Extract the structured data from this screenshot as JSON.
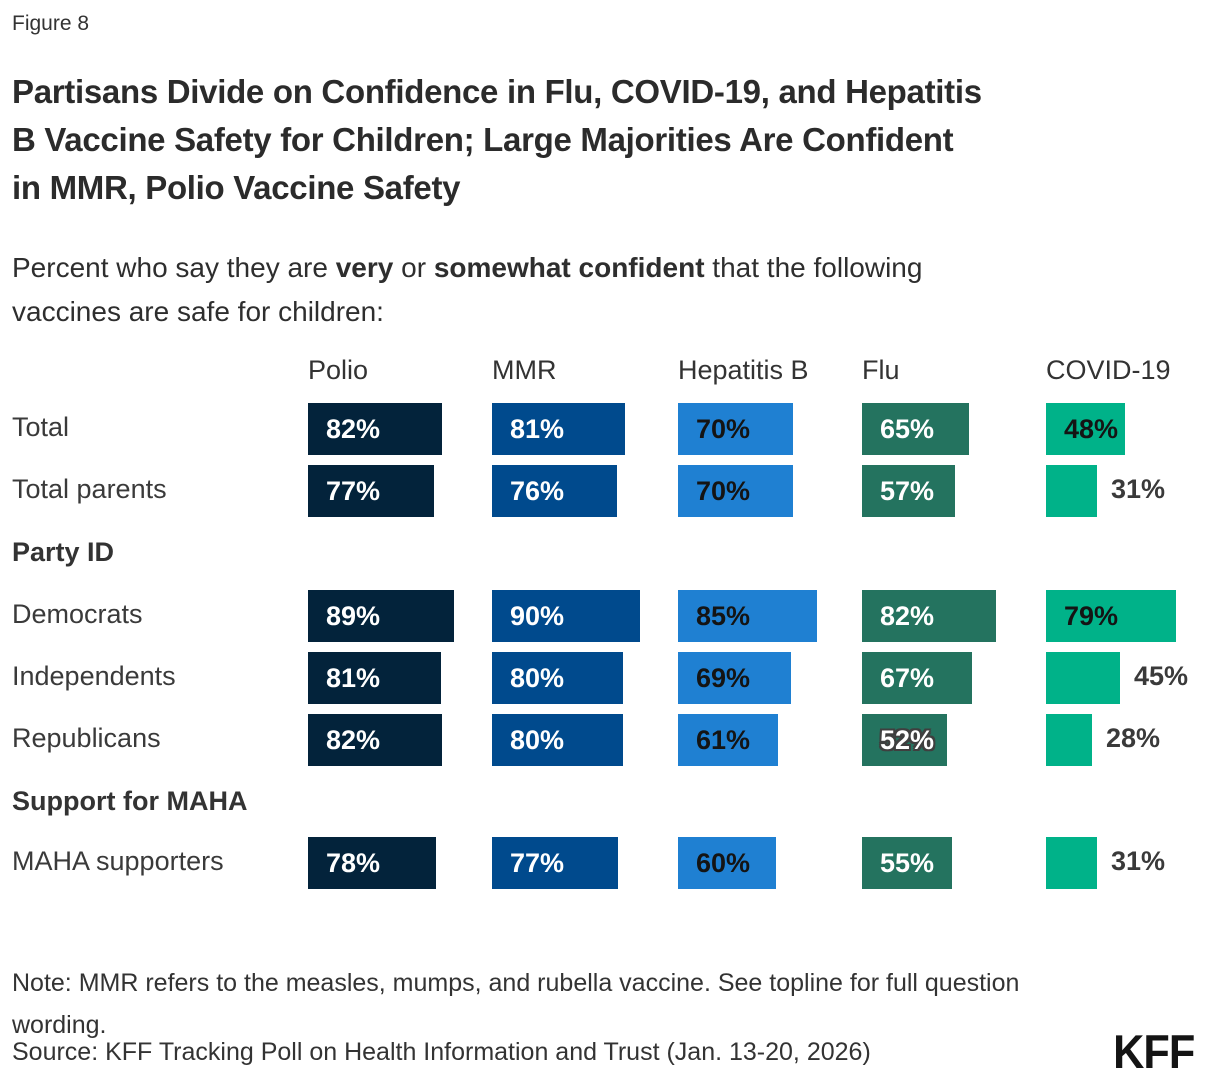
{
  "figure_label": "Figure 8",
  "title_lines": [
    "Partisans Divide on Confidence in Flu, COVID-19, and Hepatitis",
    "B Vaccine Safety for Children; Large Majorities Are Confident",
    "in MMR, Polio Vaccine Safety"
  ],
  "subtitle": {
    "line1_pre": "Percent who say they are ",
    "line1_bold1": "very",
    "line1_mid": " or ",
    "line1_bold2": "somewhat confident",
    "line1_post": " that the following",
    "line2": "vaccines are safe for children:"
  },
  "chart_data": {
    "type": "bar",
    "orientation": "horizontal",
    "unit": "%",
    "xlim": [
      0,
      100
    ],
    "grid": false,
    "legend": "none",
    "columns": [
      {
        "key": "polio",
        "label": "Polio",
        "color": "#03233B",
        "label_color": "#ffffff"
      },
      {
        "key": "mmr",
        "label": "MMR",
        "color": "#004A8D",
        "label_color": "#ffffff"
      },
      {
        "key": "hepatitis-b",
        "label": "Hepatitis B",
        "color": "#1F80D2",
        "label_color": "#141414"
      },
      {
        "key": "flu",
        "label": "Flu",
        "color": "#24735F",
        "label_color": "#ffffff"
      },
      {
        "key": "covid-19",
        "label": "COVID-19",
        "color": "#00B289",
        "label_color": "#141414"
      }
    ],
    "groups": [
      {
        "header": null,
        "rows": [
          {
            "label": "Total",
            "cells": [
              {
                "v": 82
              },
              {
                "v": 81
              },
              {
                "v": 70
              },
              {
                "v": 65
              },
              {
                "v": 48
              }
            ]
          },
          {
            "label": "Total parents",
            "cells": [
              {
                "v": 77
              },
              {
                "v": 76
              },
              {
                "v": 70
              },
              {
                "v": 57
              },
              {
                "v": 31,
                "out": true
              }
            ]
          }
        ]
      },
      {
        "header": "Party ID",
        "rows": [
          {
            "label": "Democrats",
            "cells": [
              {
                "v": 89
              },
              {
                "v": 90
              },
              {
                "v": 85
              },
              {
                "v": 82
              },
              {
                "v": 79
              }
            ]
          },
          {
            "label": "Independents",
            "cells": [
              {
                "v": 81
              },
              {
                "v": 80
              },
              {
                "v": 69
              },
              {
                "v": 67
              },
              {
                "v": 45,
                "out": true
              }
            ]
          },
          {
            "label": "Republicans",
            "cells": [
              {
                "v": 82
              },
              {
                "v": 80
              },
              {
                "v": 61
              },
              {
                "v": 52,
                "outline": true
              },
              {
                "v": 28,
                "out": true
              }
            ]
          }
        ]
      },
      {
        "header": "Support for MAHA",
        "rows": [
          {
            "label": "MAHA supporters",
            "cells": [
              {
                "v": 78
              },
              {
                "v": 77
              },
              {
                "v": 60
              },
              {
                "v": 55
              },
              {
                "v": 31,
                "out": true
              }
            ]
          }
        ]
      }
    ]
  },
  "note_lines": [
    "Note: MMR refers to the measles, mumps, and rubella vaccine. See topline for full question",
    "wording."
  ],
  "source": "Source: KFF Tracking Poll on Health Information and Trust (Jan. 13-20, 2026)",
  "logo": "KFF"
}
